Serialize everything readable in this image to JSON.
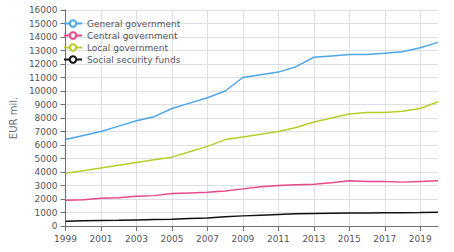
{
  "chart_data": {
    "type": "line",
    "x": [
      1999,
      2000,
      2001,
      2002,
      2003,
      2004,
      2005,
      2006,
      2007,
      2008,
      2009,
      2010,
      2011,
      2012,
      2013,
      2014,
      2015,
      2016,
      2017,
      2018,
      2019,
      2020
    ],
    "series": [
      {
        "name": "General government",
        "color": "#4DA6E8",
        "values": [
          6400,
          6700,
          7000,
          7400,
          7800,
          8100,
          8700,
          9100,
          9500,
          10000,
          11000,
          11200,
          11400,
          11800,
          12500,
          12600,
          12700,
          12700,
          12800,
          12900,
          13200,
          13600
        ]
      },
      {
        "name": "Central government",
        "color": "#E8478A",
        "values": [
          1900,
          1950,
          2050,
          2100,
          2200,
          2250,
          2400,
          2450,
          2500,
          2600,
          2750,
          2900,
          3000,
          3050,
          3100,
          3200,
          3350,
          3300,
          3300,
          3250,
          3300,
          3350
        ]
      },
      {
        "name": "Local government",
        "color": "#B8CC2A",
        "values": [
          3900,
          4100,
          4300,
          4500,
          4700,
          4900,
          5100,
          5500,
          5900,
          6400,
          6600,
          6800,
          7000,
          7300,
          7700,
          8000,
          8300,
          8400,
          8400,
          8500,
          8700,
          9200
        ]
      },
      {
        "name": "Social security funds",
        "color": "#111111",
        "values": [
          350,
          380,
          400,
          420,
          450,
          480,
          500,
          550,
          600,
          680,
          750,
          800,
          850,
          900,
          920,
          940,
          960,
          970,
          980,
          990,
          1000,
          1020
        ]
      }
    ],
    "ylabel": "EUR mil.",
    "xlim": [
      1999,
      2020
    ],
    "xticks": [
      1999,
      2001,
      2003,
      2005,
      2007,
      2009,
      2011,
      2013,
      2015,
      2017,
      2019
    ],
    "ylim": [
      0,
      16000
    ],
    "yticks": [
      0,
      1000,
      2000,
      3000,
      4000,
      5000,
      6000,
      7000,
      8000,
      9000,
      10000,
      11000,
      12000,
      13000,
      14000,
      15000,
      16000
    ],
    "grid": true,
    "legend": "upper left"
  }
}
